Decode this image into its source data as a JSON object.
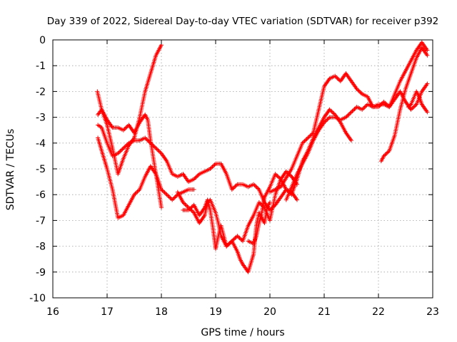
{
  "chart_data": {
    "type": "scatter",
    "title": "Day 339 of 2022, Sidereal Day-to-day VTEC variation (SDTVAR) for receiver p392",
    "xlabel": "GPS time / hours",
    "ylabel": "SDTVAR / TECUs",
    "xlim": [
      16,
      23
    ],
    "ylim": [
      -10,
      0
    ],
    "xticks": [
      16,
      17,
      18,
      19,
      20,
      21,
      22,
      23
    ],
    "yticks": [
      0,
      -1,
      -2,
      -3,
      -4,
      -5,
      -6,
      -7,
      -8,
      -9,
      -10
    ],
    "xtick_labels": [
      "16",
      "17",
      "18",
      "19",
      "20",
      "21",
      "22",
      "23"
    ],
    "ytick_labels": [
      "0",
      "-1",
      "-2",
      "-3",
      "-4",
      "-5",
      "-6",
      "-7",
      "-8",
      "-9",
      "-10"
    ],
    "grid": true,
    "marker": "+",
    "color": "#ff0000",
    "series": [
      {
        "name": "arc-1",
        "x": [
          16.82,
          16.9,
          17.0,
          17.1,
          17.2,
          17.3,
          17.4,
          17.5,
          17.6,
          17.7,
          17.8,
          17.9,
          18.0
        ],
        "y": [
          -2.0,
          -2.7,
          -3.3,
          -4.2,
          -5.2,
          -4.6,
          -4.1,
          -3.8,
          -3.0,
          -2.0,
          -1.3,
          -0.6,
          -0.2
        ]
      },
      {
        "name": "arc-2",
        "x": [
          16.83,
          16.9,
          17.0,
          17.1,
          17.2,
          17.3,
          17.4,
          17.5,
          17.6,
          17.7,
          17.75,
          17.8,
          17.9,
          18.0
        ],
        "y": [
          -2.9,
          -2.7,
          -3.1,
          -3.4,
          -3.4,
          -3.5,
          -3.3,
          -3.6,
          -3.2,
          -2.9,
          -3.1,
          -3.9,
          -5.2,
          -6.5
        ]
      },
      {
        "name": "arc-3",
        "x": [
          16.83,
          16.9,
          17.0,
          17.1,
          17.2,
          17.3,
          17.4,
          17.5,
          17.6,
          17.7,
          17.8,
          17.9,
          18.0,
          18.1,
          18.2,
          18.3,
          18.4,
          18.5,
          18.6
        ],
        "y": [
          -3.8,
          -4.3,
          -5.0,
          -5.8,
          -6.9,
          -6.8,
          -6.4,
          -6.0,
          -5.8,
          -5.3,
          -4.9,
          -5.2,
          -5.8,
          -6.0,
          -6.2,
          -6.0,
          -5.9,
          -5.8,
          -5.8
        ]
      },
      {
        "name": "arc-4",
        "x": [
          16.83,
          16.9,
          17.0,
          17.1,
          17.2,
          17.3,
          17.4,
          17.5,
          17.6,
          17.7,
          17.8,
          17.9,
          18.0,
          18.1,
          18.2,
          18.3,
          18.4,
          18.5,
          18.6,
          18.7,
          18.8,
          18.9,
          19.0,
          19.1,
          19.2,
          19.3,
          19.4,
          19.5,
          19.6,
          19.7,
          19.8,
          19.9,
          20.0,
          20.1,
          20.2,
          20.3,
          20.4,
          20.5
        ],
        "y": [
          -3.3,
          -3.4,
          -4.0,
          -4.5,
          -4.4,
          -4.2,
          -4.0,
          -3.9,
          -3.9,
          -3.8,
          -4.0,
          -4.2,
          -4.4,
          -4.7,
          -5.2,
          -5.3,
          -5.2,
          -5.5,
          -5.4,
          -5.2,
          -5.1,
          -5.0,
          -4.8,
          -4.8,
          -5.2,
          -5.8,
          -5.6,
          -5.6,
          -5.7,
          -5.6,
          -5.8,
          -6.3,
          -6.6,
          -6.4,
          -6.1,
          -5.8,
          -5.9,
          -6.2
        ]
      },
      {
        "name": "arc-5",
        "x": [
          18.4,
          18.5,
          18.6,
          18.7,
          18.8,
          18.85,
          18.9,
          18.95,
          19.0,
          19.05,
          19.1,
          19.15,
          19.2,
          19.3,
          19.4,
          19.45,
          19.5,
          19.6,
          19.7,
          19.75,
          19.8,
          19.85,
          19.9,
          19.95,
          20.0
        ],
        "y": [
          -6.6,
          -6.6,
          -6.4,
          -6.8,
          -6.5,
          -6.2,
          -6.6,
          -7.3,
          -8.1,
          -7.6,
          -7.2,
          -7.6,
          -8.0,
          -7.8,
          -8.2,
          -8.5,
          -8.7,
          -9.0,
          -8.3,
          -7.2,
          -6.7,
          -6.9,
          -7.1,
          -6.5,
          -6.3
        ]
      },
      {
        "name": "arc-6",
        "x": [
          18.3,
          18.4,
          18.5,
          18.6,
          18.7,
          18.8,
          18.85,
          18.9,
          19.0,
          19.05,
          19.1,
          19.2,
          19.3,
          19.4,
          19.5,
          19.6,
          19.7,
          19.8,
          19.9,
          20.0,
          20.1,
          20.2,
          20.3,
          20.4,
          20.5
        ],
        "y": [
          -5.9,
          -6.3,
          -6.5,
          -6.7,
          -7.1,
          -6.8,
          -6.3,
          -6.2,
          -6.7,
          -7.1,
          -7.6,
          -8.0,
          -7.8,
          -7.6,
          -7.8,
          -7.2,
          -6.8,
          -6.3,
          -6.5,
          -7.0,
          -6.0,
          -5.4,
          -5.1,
          -5.3,
          -5.6
        ]
      },
      {
        "name": "arc-7",
        "x": [
          19.6,
          19.7,
          19.75,
          19.8,
          19.85,
          19.9,
          20.0,
          20.1,
          20.2,
          20.3,
          20.4,
          20.5,
          20.6,
          20.7,
          20.8,
          20.9,
          21.0,
          21.1,
          21.2,
          21.3,
          21.4,
          21.5
        ],
        "y": [
          -7.8,
          -7.9,
          -7.6,
          -7.1,
          -6.7,
          -6.1,
          -5.7,
          -5.2,
          -5.4,
          -5.8,
          -6.0,
          -5.4,
          -4.7,
          -4.3,
          -3.8,
          -3.4,
          -3.0,
          -2.7,
          -2.9,
          -3.2,
          -3.6,
          -3.9
        ]
      },
      {
        "name": "arc-8",
        "x": [
          20.3,
          20.4,
          20.5,
          20.6,
          20.7,
          20.8,
          20.9,
          21.0,
          21.1,
          21.2,
          21.3,
          21.4,
          21.5,
          21.6,
          21.7,
          21.8,
          21.9,
          22.0,
          22.1,
          22.2,
          22.3,
          22.4,
          22.5,
          22.6,
          22.7,
          22.8,
          22.9
        ],
        "y": [
          -6.2,
          -5.7,
          -5.2,
          -4.8,
          -4.4,
          -3.9,
          -3.5,
          -3.2,
          -3.0,
          -3.0,
          -3.1,
          -3.0,
          -2.8,
          -2.6,
          -2.7,
          -2.5,
          -2.6,
          -2.6,
          -2.4,
          -2.6,
          -2.1,
          -1.6,
          -1.2,
          -0.8,
          -0.4,
          -0.1,
          -0.4
        ]
      },
      {
        "name": "arc-9",
        "x": [
          20.0,
          20.2,
          20.4,
          20.6,
          20.8,
          20.9,
          21.0,
          21.1,
          21.2,
          21.3,
          21.4,
          21.5,
          21.6,
          21.7,
          21.8,
          21.9,
          22.0,
          22.1,
          22.2,
          22.3,
          22.4,
          22.5,
          22.6,
          22.7,
          22.8,
          22.9
        ],
        "y": [
          -5.9,
          -5.7,
          -5.0,
          -4.0,
          -3.6,
          -2.7,
          -1.8,
          -1.5,
          -1.4,
          -1.6,
          -1.3,
          -1.6,
          -1.9,
          -2.1,
          -2.2,
          -2.6,
          -2.5,
          -2.5,
          -2.6,
          -2.3,
          -2.0,
          -2.4,
          -2.7,
          -2.5,
          -2.0,
          -1.7
        ]
      },
      {
        "name": "arc-10",
        "x": [
          22.05,
          22.1,
          22.2,
          22.3,
          22.4,
          22.5,
          22.6,
          22.7,
          22.8,
          22.9
        ],
        "y": [
          -4.7,
          -4.5,
          -4.3,
          -3.7,
          -2.7,
          -1.9,
          -1.3,
          -0.7,
          -0.3,
          -0.6
        ]
      },
      {
        "name": "arc-11",
        "x": [
          22.55,
          22.6,
          22.7,
          22.75,
          22.8,
          22.9
        ],
        "y": [
          -2.6,
          -2.5,
          -2.0,
          -2.2,
          -2.5,
          -2.8
        ]
      }
    ]
  }
}
